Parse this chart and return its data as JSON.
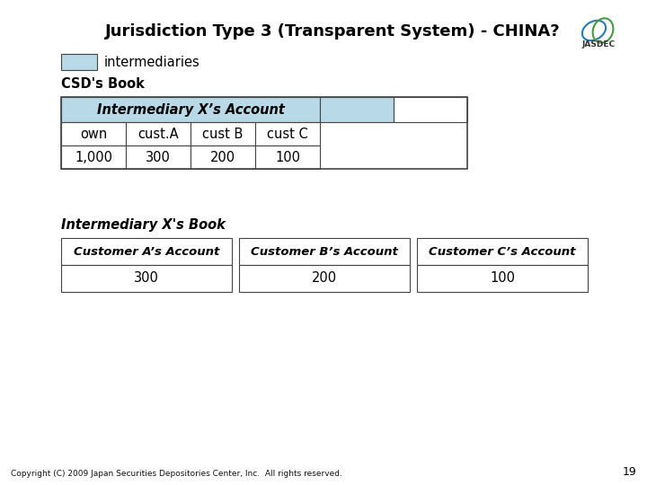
{
  "title": "Jurisdiction Type 3 (Transparent System) - CHINA?",
  "title_fontsize": 13,
  "bg_color": "#ffffff",
  "light_blue": "#b8d9e8",
  "legend_label": "intermediaries",
  "csd_label": "CSD's Book",
  "intermediary_label": "Intermediary X's Book",
  "csd_table": {
    "header_merged": "Intermediary X’s Account",
    "col_labels": [
      "own",
      "cust.A",
      "cust B",
      "cust C"
    ],
    "values": [
      "1,000",
      "300",
      "200",
      "100"
    ],
    "extra_cols": 2
  },
  "intermediary_table": {
    "accounts": [
      "Customer A’s Account",
      "Customer B’s Account",
      "Customer C’s Account"
    ],
    "values": [
      "300",
      "200",
      "100"
    ]
  },
  "footer": "Copyright (C) 2009 Japan Securities Depositories Center, Inc.  All rights reserved.",
  "page_num": "19"
}
